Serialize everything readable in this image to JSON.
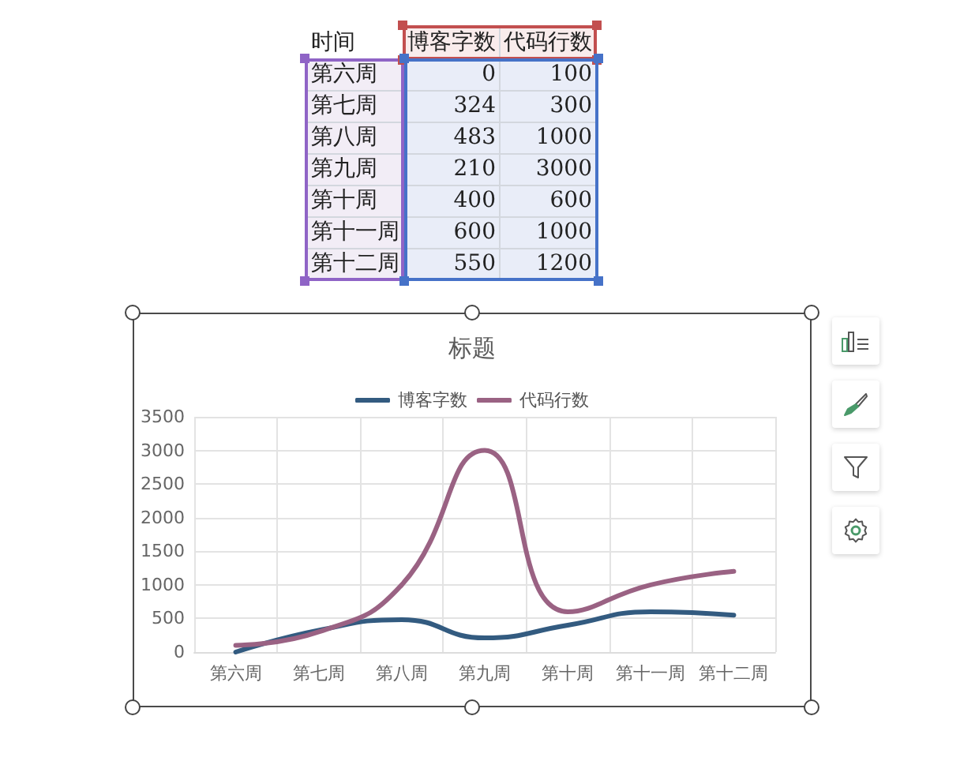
{
  "chart_data": [
    {
      "type": "other",
      "annotations": [
        "时间"
      ],
      "categories": [
        "第六周",
        "第七周",
        "第八周",
        "第九周",
        "第十周",
        "第十一周",
        "第十二周"
      ],
      "series": [
        {
          "name": "博客字数",
          "values": [
            0,
            324,
            483,
            210,
            400,
            600,
            550
          ]
        },
        {
          "name": "代码行数",
          "values": [
            100,
            300,
            1000,
            3000,
            600,
            1000,
            1200
          ]
        }
      ],
      "data_labels": true
    },
    {
      "type": "line",
      "title": "标题",
      "categories": [
        "第六周",
        "第七周",
        "第八周",
        "第九周",
        "第十周",
        "第十一周",
        "第十二周"
      ],
      "series": [
        {
          "name": "博客字数",
          "color": "#335b80",
          "values": [
            0,
            324,
            483,
            210,
            400,
            600,
            550
          ]
        },
        {
          "name": "代码行数",
          "color": "#9a6283",
          "values": [
            100,
            300,
            1000,
            3000,
            600,
            1000,
            1200
          ]
        }
      ],
      "ylim": [
        0,
        3500
      ],
      "yticks": [
        0,
        500,
        1000,
        1500,
        2000,
        2500,
        3000,
        3500
      ],
      "grid": true,
      "legend": "top"
    }
  ]
}
